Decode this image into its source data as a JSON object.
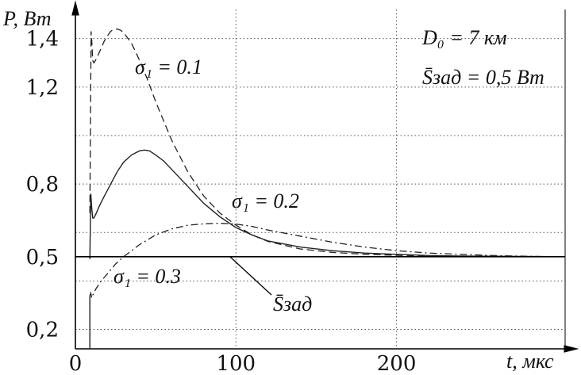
{
  "chart_data": {
    "type": "line",
    "ylabel": "P, Вт",
    "xlabel": "t, мкс",
    "xlim": [
      0,
      305
    ],
    "ylim": [
      0.12,
      1.52
    ],
    "x_ticks": [
      {
        "v": 0,
        "t": "0"
      },
      {
        "v": 100,
        "t": "100"
      },
      {
        "v": 200,
        "t": "200"
      }
    ],
    "y_ticks": [
      {
        "v": 0.2,
        "t": "0,2"
      },
      {
        "v": 0.5,
        "t": "0,5"
      },
      {
        "v": 0.8,
        "t": "0,8"
      },
      {
        "v": 1.2,
        "t": "1,2"
      },
      {
        "v": 1.4,
        "t": "1,4"
      }
    ],
    "y_grid": [
      0.2,
      0.4,
      0.5,
      0.6,
      0.8,
      1.0,
      1.2,
      1.4
    ],
    "x_grid": [
      100,
      200
    ],
    "grid": true,
    "annotation_params": {
      "D0": "D₀ = 7 км",
      "S_zad": "S̄зад = 0,5 Вт"
    },
    "series": [
      {
        "name": "σ₁ = 0.1",
        "style": "dashed",
        "x": [
          9,
          9.8,
          10.3,
          10.8,
          11.5,
          12.5,
          14,
          16,
          18,
          20,
          22,
          24,
          26,
          28,
          30,
          35,
          40,
          45,
          50,
          60,
          70,
          80,
          90,
          100,
          110,
          120,
          140,
          160,
          180,
          200,
          220,
          240,
          260,
          280,
          300
        ],
        "y": [
          0.68,
          1.43,
          1.38,
          1.31,
          1.3,
          1.31,
          1.33,
          1.36,
          1.39,
          1.412,
          1.43,
          1.438,
          1.44,
          1.435,
          1.425,
          1.38,
          1.31,
          1.23,
          1.14,
          0.98,
          0.85,
          0.75,
          0.68,
          0.63,
          0.59,
          0.563,
          0.532,
          0.518,
          0.51,
          0.506,
          0.503,
          0.502,
          0.501,
          0.5,
          0.5
        ]
      },
      {
        "name": "σ₁ = 0.2",
        "style": "solid",
        "x": [
          9,
          9.6,
          10.2,
          10.8,
          11.5,
          13,
          15,
          18,
          22,
          26,
          30,
          35,
          40,
          43,
          46,
          50,
          55,
          60,
          70,
          80,
          90,
          100,
          110,
          120,
          140,
          160,
          180,
          200,
          220,
          240,
          260,
          280,
          300
        ],
        "y": [
          0.49,
          0.76,
          0.7,
          0.66,
          0.66,
          0.68,
          0.71,
          0.75,
          0.8,
          0.85,
          0.89,
          0.92,
          0.937,
          0.94,
          0.937,
          0.92,
          0.895,
          0.86,
          0.79,
          0.72,
          0.665,
          0.62,
          0.59,
          0.565,
          0.54,
          0.525,
          0.515,
          0.51,
          0.505,
          0.503,
          0.502,
          0.501,
          0.5
        ]
      },
      {
        "name": "σ₁ = 0.3",
        "style": "dashdot",
        "x": [
          9,
          9.6,
          10.2,
          11,
          13,
          16,
          20,
          25,
          30,
          40,
          50,
          60,
          70,
          80,
          90,
          100,
          110,
          120,
          140,
          160,
          180,
          200,
          220,
          240,
          260,
          280,
          300
        ],
        "y": [
          0.34,
          0.35,
          0.33,
          0.345,
          0.37,
          0.4,
          0.43,
          0.47,
          0.5,
          0.55,
          0.59,
          0.615,
          0.63,
          0.636,
          0.638,
          0.635,
          0.625,
          0.61,
          0.585,
          0.56,
          0.54,
          0.525,
          0.515,
          0.51,
          0.505,
          0.502,
          0.5
        ]
      },
      {
        "name": "S̄зад",
        "style": "solid-flat",
        "x": [
          0,
          305
        ],
        "y": [
          0.5,
          0.5
        ]
      }
    ],
    "labels": {
      "s01": "σ₁ = 0.1",
      "s02": "σ₁ = 0.2",
      "s03": "σ₁ = 0.3",
      "szad": "S̄зад"
    },
    "colors": {
      "line": "#222222",
      "grid": "#555555",
      "axis": "#000000"
    }
  }
}
